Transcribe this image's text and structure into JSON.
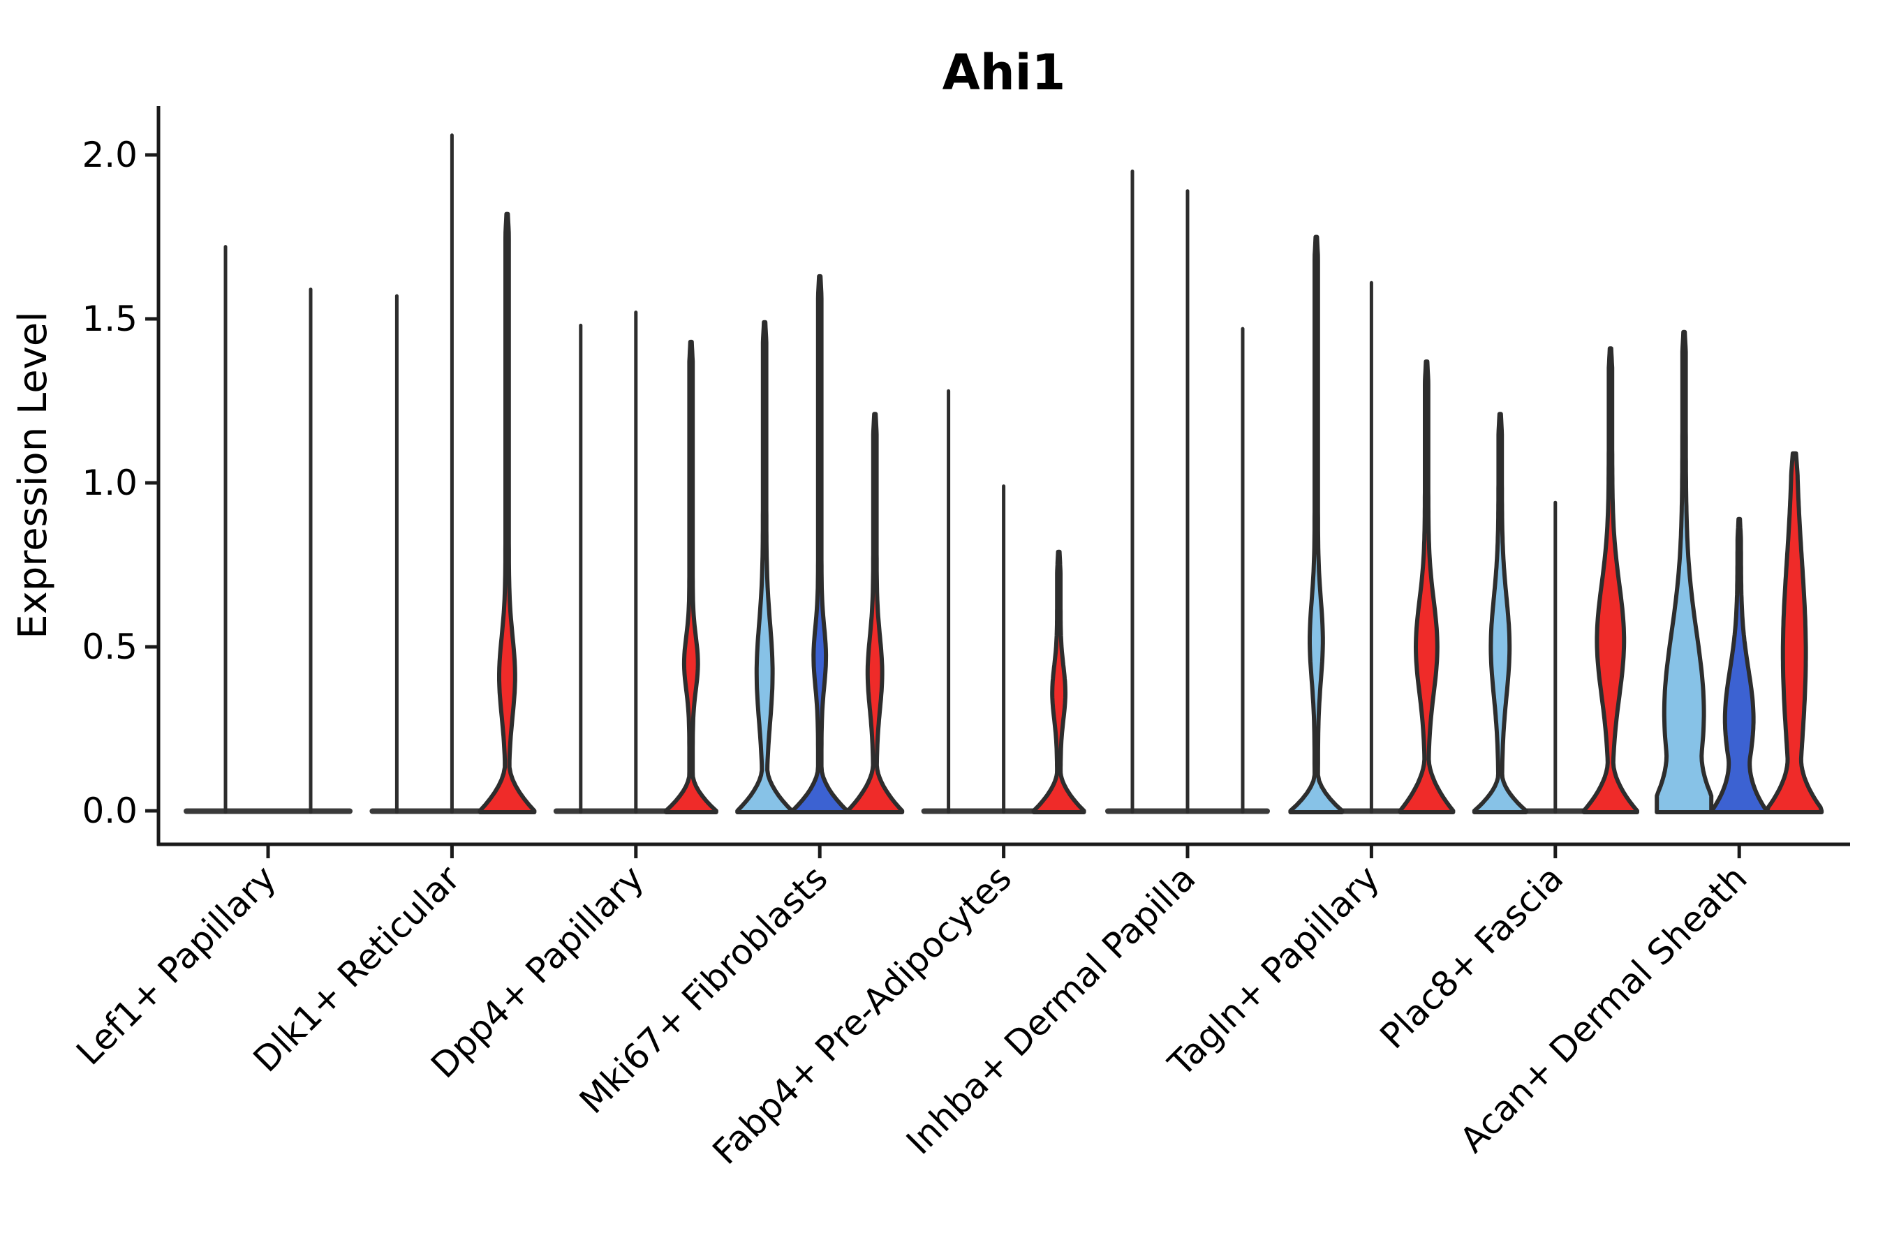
{
  "title": "Ahi1",
  "axes": {
    "y_label": "Expression Level",
    "y_ticks": [
      "0.0",
      "0.5",
      "1.0",
      "1.5",
      "2.0"
    ]
  },
  "colors": {
    "split_colors": [
      "#87C2E7",
      "#3C62D2",
      "#EF2B29"
    ],
    "outline": "#2D2D2D",
    "zero_band": "#3A3A3A",
    "axis": "#1A1A1A",
    "background": "#FFFFFF"
  },
  "chart_data": {
    "type": "violin",
    "title": "Ahi1",
    "ylabel": "Expression Level",
    "xlabel": "",
    "ylim": [
      -0.12,
      2.15
    ],
    "y_tick_values": [
      0.0,
      0.5,
      1.0,
      1.5,
      2.0
    ],
    "grid": false,
    "legend": "none",
    "n_splits": 3,
    "categories": [
      "Lef1+ Papillary",
      "Dlk1+ Reticular",
      "Dpp4+ Papillary",
      "Mki67+ Fibroblasts",
      "Fabp4+ Pre-Adipocytes",
      "Inhba+ Dermal Papilla",
      "Tagln+ Papillary",
      "Plac8+ Fascia",
      "Acan+ Dermal Sheath"
    ],
    "groups": [
      {
        "category": "Lef1+ Papillary",
        "violins": [
          {
            "split": 0,
            "max": 1.72,
            "thin": true,
            "offset": -61,
            "slot_hw": 60
          },
          {
            "split": 1,
            "max": 1.59,
            "thin": true,
            "offset": 61,
            "slot_hw": 60
          }
        ]
      },
      {
        "category": "Dlk1+ Reticular",
        "violins": [
          {
            "split": 0,
            "max": 1.57,
            "thin": true,
            "offset": -79,
            "slot_hw": 39
          },
          {
            "split": 1,
            "max": 2.06,
            "thin": true,
            "offset": 0,
            "slot_hw": 39
          },
          {
            "split": 2,
            "max": 1.82,
            "offset": 79,
            "slot_hw": 39,
            "bulge": {
              "peak": 0.41,
              "hw": 9,
              "sigma": 0.12
            },
            "pancake": {
              "h": 0.14,
              "hw": 39
            }
          }
        ]
      },
      {
        "category": "Dpp4+ Papillary",
        "violins": [
          {
            "split": 0,
            "max": 1.48,
            "thin": true,
            "offset": -79,
            "slot_hw": 39
          },
          {
            "split": 1,
            "max": 1.52,
            "thin": true,
            "offset": 0,
            "slot_hw": 39
          },
          {
            "split": 2,
            "max": 1.43,
            "offset": 79,
            "slot_hw": 39,
            "bulge": {
              "peak": 0.45,
              "hw": 7.5,
              "sigma": 0.08
            },
            "pancake": {
              "h": 0.11,
              "hw": 36
            }
          }
        ]
      },
      {
        "category": "Mki67+ Fibroblasts",
        "violins": [
          {
            "split": 0,
            "max": 1.49,
            "offset": -79,
            "slot_hw": 39,
            "bulge": {
              "peak": 0.42,
              "hw": 9,
              "sigma": 0.15
            },
            "pancake": {
              "h": 0.13,
              "hw": 39
            }
          },
          {
            "split": 1,
            "max": 1.63,
            "offset": 0,
            "slot_hw": 39,
            "bulge": {
              "peak": 0.47,
              "hw": 6.5,
              "sigma": 0.09
            },
            "pancake": {
              "h": 0.13,
              "hw": 39
            }
          },
          {
            "split": 2,
            "max": 1.21,
            "offset": 79,
            "slot_hw": 39,
            "bulge": {
              "peak": 0.42,
              "hw": 8,
              "sigma": 0.11
            },
            "pancake": {
              "h": 0.14,
              "hw": 39
            }
          }
        ]
      },
      {
        "category": "Fabp4+ Pre-Adipocytes",
        "violins": [
          {
            "split": 0,
            "max": 1.28,
            "thin": true,
            "offset": -79,
            "slot_hw": 39
          },
          {
            "split": 1,
            "max": 0.99,
            "thin": true,
            "offset": 0,
            "slot_hw": 39
          },
          {
            "split": 2,
            "max": 0.79,
            "offset": 79,
            "slot_hw": 39,
            "bulge": {
              "peak": 0.36,
              "hw": 7,
              "sigma": 0.08
            },
            "pancake": {
              "h": 0.12,
              "hw": 36
            }
          }
        ]
      },
      {
        "category": "Inhba+ Dermal Papilla",
        "violins": [
          {
            "split": 0,
            "max": 1.95,
            "thin": true,
            "offset": -79,
            "slot_hw": 39
          },
          {
            "split": 1,
            "max": 1.89,
            "thin": true,
            "offset": 0,
            "slot_hw": 39
          },
          {
            "split": 2,
            "max": 1.47,
            "thin": true,
            "offset": 79,
            "slot_hw": 39
          }
        ]
      },
      {
        "category": "Tagln+ Papillary",
        "violins": [
          {
            "split": 0,
            "max": 1.75,
            "offset": -79,
            "slot_hw": 39,
            "bulge": {
              "peak": 0.52,
              "hw": 7,
              "sigma": 0.12
            },
            "pancake": {
              "h": 0.11,
              "hw": 37
            }
          },
          {
            "split": 1,
            "max": 1.61,
            "thin": true,
            "offset": 0,
            "slot_hw": 39
          },
          {
            "split": 2,
            "max": 1.37,
            "offset": 79,
            "slot_hw": 39,
            "bulge": {
              "peak": 0.5,
              "hw": 13,
              "sigma": 0.14
            },
            "pancake": {
              "h": 0.16,
              "hw": 38
            }
          }
        ]
      },
      {
        "category": "Plac8+ Fascia",
        "violins": [
          {
            "split": 0,
            "max": 1.21,
            "offset": -79,
            "slot_hw": 39,
            "bulge": {
              "peak": 0.5,
              "hw": 11,
              "sigma": 0.15
            },
            "pancake": {
              "h": 0.11,
              "hw": 37
            }
          },
          {
            "split": 1,
            "max": 0.94,
            "thin": true,
            "offset": 0,
            "slot_hw": 39
          },
          {
            "split": 2,
            "max": 1.41,
            "offset": 79,
            "slot_hw": 39,
            "bulge": {
              "peak": 0.52,
              "hw": 17,
              "sigma": 0.17
            },
            "pancake": {
              "h": 0.15,
              "hw": 38
            }
          }
        ]
      },
      {
        "category": "Acan+ Dermal Sheath",
        "violins": [
          {
            "split": 0,
            "max": 1.46,
            "offset": -79,
            "slot_hw": 39,
            "bulge": {
              "peak": 0.3,
              "hw": 26,
              "sigma": 0.24
            },
            "pancake": {
              "h": 0.18,
              "hw": 39
            }
          },
          {
            "split": 1,
            "max": 0.89,
            "offset": 0,
            "slot_hw": 39,
            "bulge": {
              "peak": 0.28,
              "hw": 18,
              "sigma": 0.15
            },
            "pancake": {
              "h": 0.16,
              "hw": 36
            }
          },
          {
            "split": 2,
            "max": 1.09,
            "offset": 79,
            "slot_hw": 39,
            "bulge": {
              "peak": 0.48,
              "hw": 14,
              "sigma": 0.28
            },
            "pancake": {
              "h": 0.16,
              "hw": 38
            }
          }
        ]
      }
    ]
  }
}
